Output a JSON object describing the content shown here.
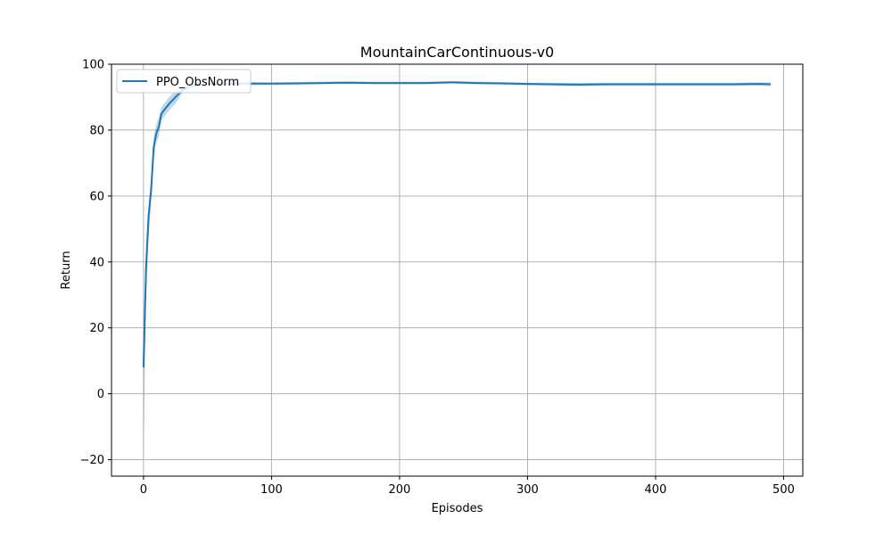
{
  "chart_data": {
    "type": "line",
    "title": "MountainCarContinuous-v0",
    "xlabel": "Episodes",
    "ylabel": "Return",
    "xlim": [
      -25,
      515
    ],
    "ylim": [
      -25,
      100
    ],
    "xticks": [
      0,
      100,
      200,
      300,
      400,
      500
    ],
    "yticks": [
      -20,
      0,
      20,
      40,
      60,
      80,
      100
    ],
    "grid": true,
    "legend_position": "top-left",
    "series": [
      {
        "name": "PPO_ObsNorm",
        "color": "#1f77b4",
        "x": [
          0,
          2,
          4,
          6,
          8,
          10,
          12,
          14,
          16,
          18,
          20,
          25,
          30,
          35,
          40,
          50,
          60,
          70,
          80,
          100,
          120,
          140,
          160,
          180,
          200,
          220,
          240,
          260,
          280,
          300,
          320,
          340,
          360,
          380,
          400,
          420,
          440,
          460,
          480,
          490
        ],
        "mean": [
          8,
          38,
          54,
          62,
          75,
          79,
          81,
          85,
          86,
          87,
          88,
          90,
          92,
          93,
          93.5,
          94,
          94,
          94.1,
          94.1,
          94.1,
          94.2,
          94.3,
          94.4,
          94.3,
          94.3,
          94.3,
          94.5,
          94.3,
          94.2,
          94.0,
          93.9,
          93.8,
          93.9,
          93.9,
          93.9,
          93.9,
          93.9,
          93.9,
          94.0,
          93.9
        ],
        "lower": [
          -20,
          30,
          48,
          58,
          72,
          76,
          78,
          83,
          84,
          85,
          86,
          88,
          91,
          92,
          92.5,
          93.4,
          93.5,
          93.6,
          93.6,
          93.7,
          93.8,
          93.9,
          94.0,
          93.9,
          93.9,
          93.9,
          94.1,
          93.9,
          93.8,
          93.6,
          93.4,
          93.3,
          93.4,
          93.4,
          93.4,
          93.4,
          93.4,
          93.4,
          93.5,
          93.3
        ],
        "upper": [
          18,
          46,
          58,
          66,
          78,
          82,
          84,
          87,
          88,
          89,
          90,
          92,
          93.5,
          94,
          94.3,
          94.6,
          94.5,
          94.6,
          94.6,
          94.5,
          94.6,
          94.7,
          94.8,
          94.7,
          94.7,
          94.7,
          94.9,
          94.7,
          94.6,
          94.4,
          94.4,
          94.3,
          94.4,
          94.4,
          94.4,
          94.4,
          94.4,
          94.4,
          94.5,
          94.5
        ]
      }
    ]
  }
}
